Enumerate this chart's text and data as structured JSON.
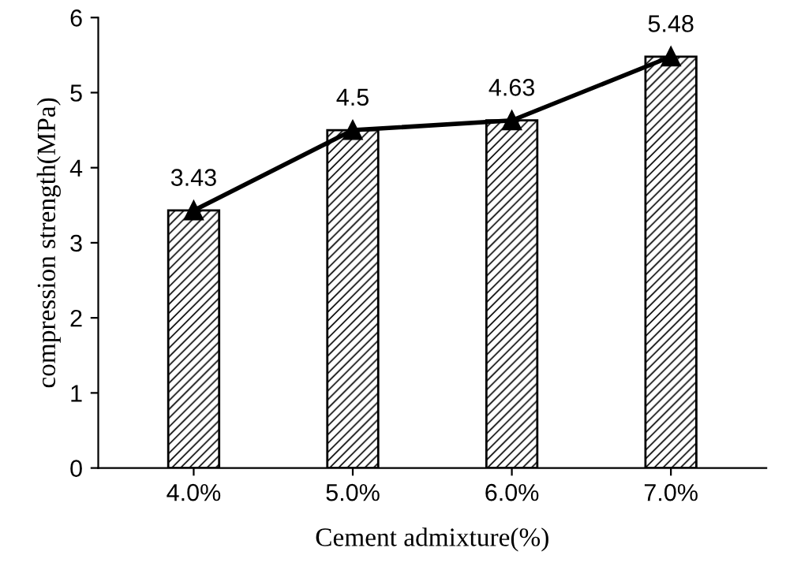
{
  "chart_data": {
    "type": "bar",
    "xlabel": "Cement admixture(%)",
    "ylabel": "compression strength(MPa)",
    "categories": [
      "4.0%",
      "5.0%",
      "6.0%",
      "7.0%"
    ],
    "series": [
      {
        "color": "#000000",
        "values": [
          3.43,
          4.5,
          4.63,
          5.48
        ]
      },
      {
        "type": "line",
        "color": "#000000",
        "marker": "triangle",
        "values": [
          3.43,
          4.5,
          4.63,
          5.48
        ],
        "value_labels": [
          "3.43",
          "4.5",
          "4.63",
          "5.48"
        ]
      }
    ],
    "ylim": [
      0,
      6
    ],
    "yticks": [
      0,
      1,
      2,
      3,
      4,
      5,
      6
    ],
    "grid": false,
    "legend": false
  }
}
